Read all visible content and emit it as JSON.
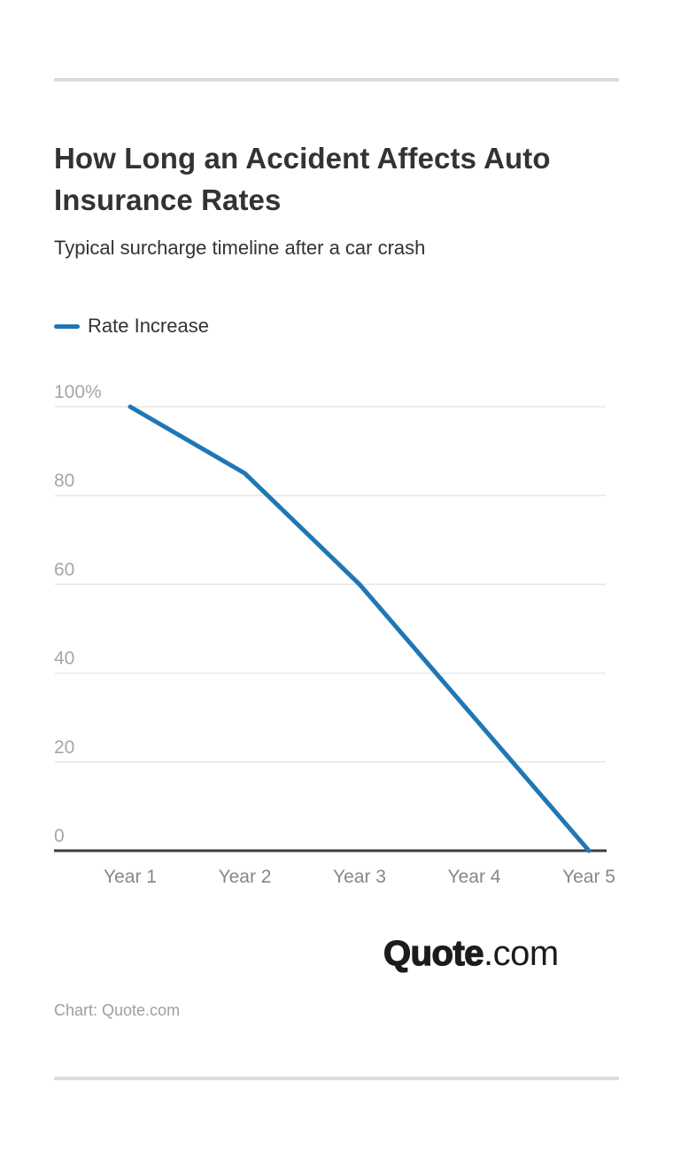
{
  "header": {
    "title": "How Long an Accident Affects Auto Insurance Rates",
    "subtitle": "Typical surcharge timeline after a car crash"
  },
  "legend": {
    "label": "Rate Increase"
  },
  "chart_data": {
    "type": "line",
    "categories": [
      "Year 1",
      "Year 2",
      "Year 3",
      "Year 4",
      "Year 5"
    ],
    "series": [
      {
        "name": "Rate Increase",
        "values": [
          100,
          85,
          60,
          30,
          0
        ],
        "color": "#1f77b4"
      }
    ],
    "title": "How Long an Accident Affects Auto Insurance Rates",
    "subtitle": "Typical surcharge timeline after a car crash",
    "xlabel": "",
    "ylabel": "",
    "ylim": [
      0,
      100
    ],
    "yticks": [
      0,
      20,
      40,
      60,
      80,
      100
    ],
    "ytick_labels": [
      "0",
      "20",
      "40",
      "60",
      "80",
      "100%"
    ],
    "grid": true,
    "legend_position": "top-left"
  },
  "footer": {
    "logo_bold": "Quote",
    "logo_suffix": ".com",
    "credit": "Chart: Quote.com"
  },
  "colors": {
    "accent": "#1f77b4",
    "grid": "#e7e7e7",
    "axis": "#3d3d3d",
    "title_text": "#333333",
    "y_tick_text": "#a6a6a6",
    "x_tick_text": "#878787",
    "muted_text": "#9e9e9e",
    "divider": "#dcdcdc",
    "logo_text": "#1c1c1e"
  }
}
